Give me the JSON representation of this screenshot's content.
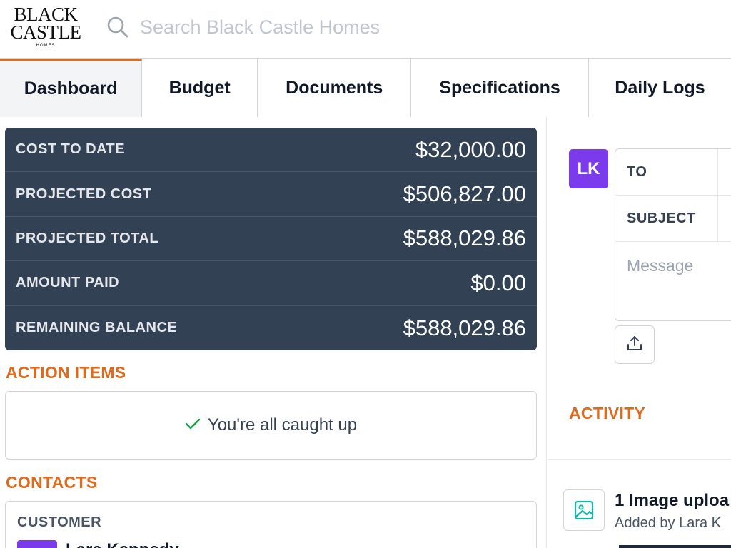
{
  "header": {
    "logo": {
      "line1": "BLACK",
      "line2": "CASTLE",
      "line3": "HOMES"
    },
    "search": {
      "placeholder": "Search Black Castle Homes",
      "icon": "search-icon"
    }
  },
  "tabs": [
    {
      "label": "Dashboard",
      "active": true
    },
    {
      "label": "Budget"
    },
    {
      "label": "Documents"
    },
    {
      "label": "Specifications"
    },
    {
      "label": "Daily Logs"
    }
  ],
  "summary": {
    "rows": [
      {
        "label": "COST TO DATE",
        "value": "$32,000.00"
      },
      {
        "label": "PROJECTED COST",
        "value": "$506,827.00"
      },
      {
        "label": "PROJECTED TOTAL",
        "value": "$588,029.86"
      },
      {
        "label": "AMOUNT PAID",
        "value": "$0.00"
      },
      {
        "label": "REMAINING BALANCE",
        "value": "$588,029.86"
      }
    ]
  },
  "action_items": {
    "title": "ACTION ITEMS",
    "status": "You're all caught up"
  },
  "contacts": {
    "title": "CONTACTS",
    "role": "CUSTOMER",
    "name": "Lara Kennedy"
  },
  "message": {
    "avatar_initials": "LK",
    "to_label": "TO",
    "subject_label": "SUBJECT",
    "message_placeholder": "Message"
  },
  "activity": {
    "title": "ACTIVITY",
    "item_title": "1 Image uploa",
    "item_sub": "Added by Lara K"
  },
  "colors": {
    "accent": "#e06a1b",
    "summary_bg": "#334155",
    "avatar": "#7c3aed",
    "check": "#16a34a",
    "image_icon": "#14b8a6"
  }
}
